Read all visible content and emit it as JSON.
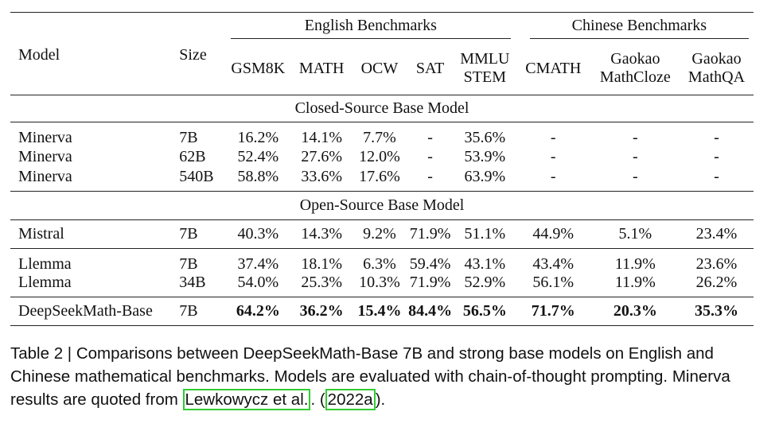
{
  "table": {
    "headers": {
      "model": "Model",
      "size": "Size",
      "english_group": "English Benchmarks",
      "chinese_group": "Chinese Benchmarks",
      "columns": [
        "GSM8K",
        "MATH",
        "OCW",
        "SAT",
        "MMLU STEM",
        "CMATH",
        "Gaokao MathCloze",
        "Gaokao MathQA"
      ]
    },
    "sections": {
      "closed": "Closed-Source Base Model",
      "open": "Open-Source Base Model"
    },
    "rows": [
      {
        "model": "Minerva",
        "size": "7B",
        "values": [
          "16.2%",
          "14.1%",
          "7.7%",
          "-",
          "35.6%",
          "-",
          "-",
          "-"
        ]
      },
      {
        "model": "Minerva",
        "size": "62B",
        "values": [
          "52.4%",
          "27.6%",
          "12.0%",
          "-",
          "53.9%",
          "-",
          "-",
          "-"
        ]
      },
      {
        "model": "Minerva",
        "size": "540B",
        "values": [
          "58.8%",
          "33.6%",
          "17.6%",
          "-",
          "63.9%",
          "-",
          "-",
          "-"
        ]
      },
      {
        "model": "Mistral",
        "size": "7B",
        "values": [
          "40.3%",
          "14.3%",
          "9.2%",
          "71.9%",
          "51.1%",
          "44.9%",
          "5.1%",
          "23.4%"
        ]
      },
      {
        "model": "Llemma",
        "size": "7B",
        "values": [
          "37.4%",
          "18.1%",
          "6.3%",
          "59.4%",
          "43.1%",
          "43.4%",
          "11.9%",
          "23.6%"
        ]
      },
      {
        "model": "Llemma",
        "size": "34B",
        "values": [
          "54.0%",
          "25.3%",
          "10.3%",
          "71.9%",
          "52.9%",
          "56.1%",
          "11.9%",
          "26.2%"
        ]
      },
      {
        "model": "DeepSeekMath-Base",
        "size": "7B",
        "values": [
          "64.2%",
          "36.2%",
          "15.4%",
          "84.4%",
          "56.5%",
          "71.7%",
          "20.3%",
          "35.3%"
        ]
      }
    ]
  },
  "caption": {
    "text": "Table 2 | Comparisons between DeepSeekMath-Base 7B and strong base models on English and Chinese mathematical benchmarks. Models are evaluated with chain-of-thought prompting. Minerva results are quoted from ",
    "cite_author": "Lewkowycz et al.",
    "cite_mid": ". (",
    "cite_year": "2022a",
    "cite_end": ")."
  },
  "colors": {
    "citation_box": "#33cc33"
  }
}
